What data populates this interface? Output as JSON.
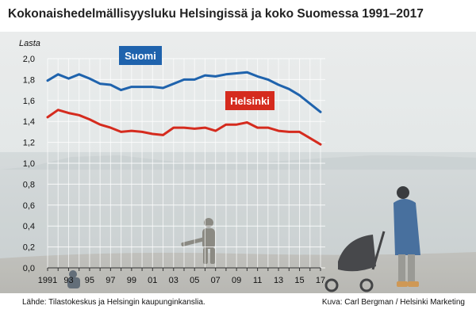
{
  "title": "Kokonaishedelmällisyysluku Helsingissä ja koko Suomessa 1991–2017",
  "source": "Lähde: Tilastokeskus ja Helsingin kaupunginkanslia.",
  "photo_credit": "Kuva: Carl Bergman / Helsinki Marketing",
  "chart_data": {
    "type": "line",
    "title": "Kokonaishedelmällisyysluku Helsingissä ja koko Suomessa 1991–2017",
    "ylabel": "Lasta",
    "xlabel": "",
    "ylim": [
      0,
      2.0
    ],
    "y_ticks": [
      "0,0",
      "0,2",
      "0,4",
      "0,6",
      "0,8",
      "1,0",
      "1,2",
      "1,4",
      "1,6",
      "1,8",
      "2,0"
    ],
    "y_tick_values": [
      0,
      0.2,
      0.4,
      0.6,
      0.8,
      1.0,
      1.2,
      1.4,
      1.6,
      1.8,
      2.0
    ],
    "x": [
      1991,
      1992,
      1993,
      1994,
      1995,
      1996,
      1997,
      1998,
      1999,
      2000,
      2001,
      2002,
      2003,
      2004,
      2005,
      2006,
      2007,
      2008,
      2009,
      2010,
      2011,
      2012,
      2013,
      2014,
      2015,
      2016,
      2017
    ],
    "x_tick_labels": [
      "1991",
      "93",
      "95",
      "97",
      "99",
      "01",
      "03",
      "05",
      "07",
      "09",
      "11",
      "13",
      "15",
      "17"
    ],
    "x_tick_years": [
      1991,
      1993,
      1995,
      1997,
      1999,
      2001,
      2003,
      2005,
      2007,
      2009,
      2011,
      2013,
      2015,
      2017
    ],
    "grid": true,
    "series": [
      {
        "name": "Suomi",
        "color": "#1f63ad",
        "values": [
          1.79,
          1.85,
          1.81,
          1.85,
          1.81,
          1.76,
          1.75,
          1.7,
          1.73,
          1.73,
          1.73,
          1.72,
          1.76,
          1.8,
          1.8,
          1.84,
          1.83,
          1.85,
          1.86,
          1.87,
          1.83,
          1.8,
          1.75,
          1.71,
          1.65,
          1.57,
          1.49
        ]
      },
      {
        "name": "Helsinki",
        "color": "#d52b1e",
        "values": [
          1.44,
          1.51,
          1.48,
          1.46,
          1.42,
          1.37,
          1.34,
          1.3,
          1.31,
          1.3,
          1.28,
          1.27,
          1.34,
          1.34,
          1.33,
          1.34,
          1.31,
          1.37,
          1.37,
          1.39,
          1.34,
          1.34,
          1.31,
          1.3,
          1.3,
          1.24,
          1.18
        ]
      }
    ]
  }
}
